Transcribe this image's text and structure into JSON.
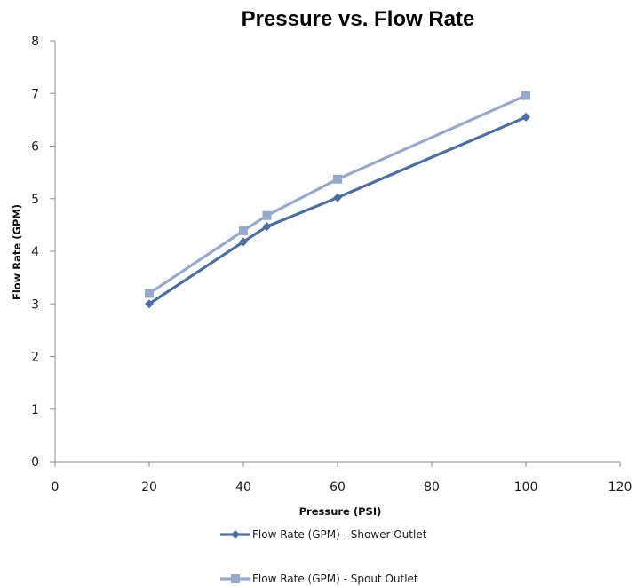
{
  "chart_data": {
    "type": "line",
    "title": "Pressure vs. Flow Rate",
    "xlabel": "Pressure (PSI)",
    "ylabel": "Flow Rate (GPM)",
    "xlim": [
      0,
      120
    ],
    "ylim": [
      0,
      8
    ],
    "xticks": [
      "0",
      "20",
      "40",
      "60",
      "80",
      "100",
      "120"
    ],
    "yticks": [
      "0",
      "1",
      "2",
      "3",
      "4",
      "5",
      "6",
      "7",
      "8"
    ],
    "grid": false,
    "legend_position": "bottom",
    "series": [
      {
        "name": "Flow Rate (GPM) - Shower Outlet",
        "color": "#4a6fa5",
        "marker": "diamond",
        "x": [
          20,
          40,
          45,
          60,
          100
        ],
        "y": [
          3.0,
          4.18,
          4.47,
          5.02,
          6.55
        ]
      },
      {
        "name": "Flow Rate (GPM) - Spout Outlet",
        "color": "#95a9cf",
        "marker": "square",
        "x": [
          20,
          40,
          45,
          60,
          100
        ],
        "y": [
          3.2,
          4.39,
          4.68,
          5.37,
          6.96
        ]
      }
    ]
  }
}
